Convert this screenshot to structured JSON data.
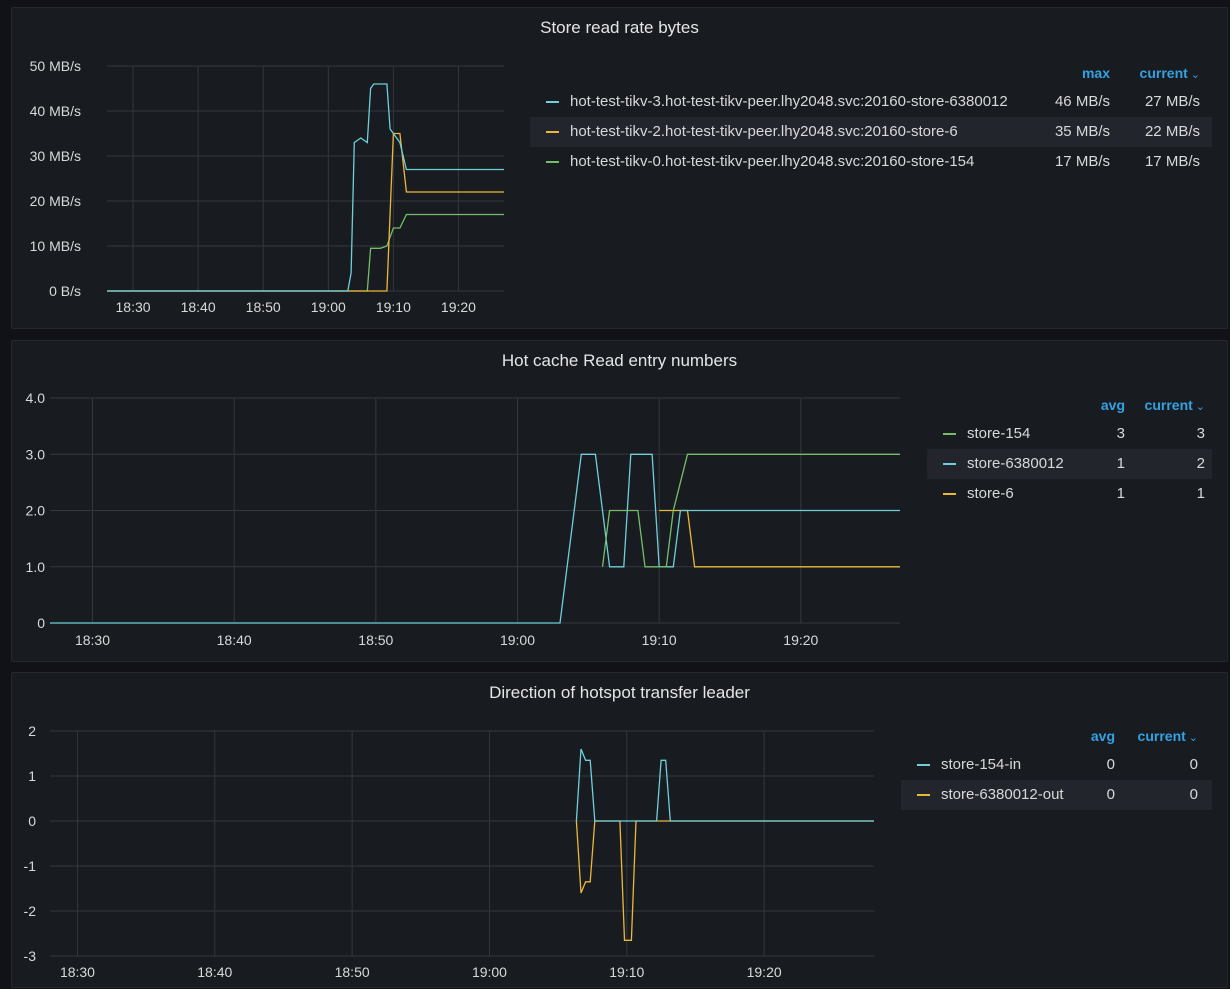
{
  "colors": {
    "green": "#73bf69",
    "cyan": "#6fcfdb",
    "yellow": "#eab839",
    "accent": "#33a2e5",
    "grid": "#34373d"
  },
  "panels": [
    {
      "title": "Store read rate bytes",
      "legend": {
        "columns": [
          "max",
          "current"
        ],
        "current_chevron": "⌄",
        "rows": [
          {
            "name": "hot-test-tikv-3.hot-test-tikv-peer.lhy2048.svc:20160-store-6380012",
            "color": "#6fcfdb",
            "values": [
              "46 MB/s",
              "27 MB/s"
            ]
          },
          {
            "name": "hot-test-tikv-2.hot-test-tikv-peer.lhy2048.svc:20160-store-6",
            "color": "#eab839",
            "values": [
              "35 MB/s",
              "22 MB/s"
            ]
          },
          {
            "name": "hot-test-tikv-0.hot-test-tikv-peer.lhy2048.svc:20160-store-154",
            "color": "#73bf69",
            "values": [
              "17 MB/s",
              "17 MB/s"
            ]
          }
        ]
      }
    },
    {
      "title": "Hot cache Read entry numbers",
      "legend": {
        "columns": [
          "avg",
          "current"
        ],
        "current_chevron": "⌄",
        "rows": [
          {
            "name": "store-154",
            "color": "#73bf69",
            "values": [
              "3",
              "3"
            ]
          },
          {
            "name": "store-6380012",
            "color": "#6fcfdb",
            "values": [
              "1",
              "2"
            ]
          },
          {
            "name": "store-6",
            "color": "#eab839",
            "values": [
              "1",
              "1"
            ]
          }
        ]
      }
    },
    {
      "title": "Direction of hotspot transfer leader",
      "legend": {
        "columns": [
          "avg",
          "current"
        ],
        "current_chevron": "⌄",
        "rows": [
          {
            "name": "store-154-in",
            "color": "#6fcfdb",
            "values": [
              "0",
              "0"
            ]
          },
          {
            "name": "store-6380012-out",
            "color": "#eab839",
            "values": [
              "0",
              "0"
            ]
          }
        ]
      }
    }
  ],
  "chart_data": [
    {
      "type": "line",
      "title": "Store read rate bytes",
      "x_unit": "minutes",
      "xlim": [
        "18:26",
        "19:27"
      ],
      "x_ticks": [
        "18:30",
        "18:40",
        "18:50",
        "19:00",
        "19:10",
        "19:20"
      ],
      "ylim": [
        0,
        50
      ],
      "y_ticks": [
        0,
        10,
        20,
        30,
        40,
        50
      ],
      "y_tick_labels": [
        "0 B/s",
        "10 MB/s",
        "20 MB/s",
        "30 MB/s",
        "40 MB/s",
        "50 MB/s"
      ],
      "grid": true,
      "legend_position": "right",
      "series": [
        {
          "name": "hot-test-tikv-3.hot-test-tikv-peer.lhy2048.svc:20160-store-6380012",
          "color": "#6fcfdb",
          "points": [
            [
              "18:26",
              0
            ],
            [
              "19:03",
              0
            ],
            [
              "19:03:30",
              4
            ],
            [
              "19:04",
              33
            ],
            [
              "19:05",
              34
            ],
            [
              "19:06",
              33
            ],
            [
              "19:06:30",
              45
            ],
            [
              "19:07",
              46
            ],
            [
              "19:08",
              46
            ],
            [
              "19:09",
              46
            ],
            [
              "19:09:30",
              36
            ],
            [
              "19:10",
              35
            ],
            [
              "19:11",
              33
            ],
            [
              "19:12",
              27
            ],
            [
              "19:14",
              27
            ],
            [
              "19:16",
              27
            ],
            [
              "19:18",
              27
            ],
            [
              "19:20",
              27
            ],
            [
              "19:22",
              27
            ],
            [
              "19:25",
              27
            ],
            [
              "19:27",
              27
            ]
          ]
        },
        {
          "name": "hot-test-tikv-2.hot-test-tikv-peer.lhy2048.svc:20160-store-6",
          "color": "#eab839",
          "points": [
            [
              "18:26",
              0
            ],
            [
              "19:09",
              0
            ],
            [
              "19:10",
              35
            ],
            [
              "19:11",
              35
            ],
            [
              "19:12",
              22
            ],
            [
              "19:14",
              22
            ],
            [
              "19:16",
              22
            ],
            [
              "19:18",
              22
            ],
            [
              "19:20",
              22
            ],
            [
              "19:22",
              22
            ],
            [
              "19:25",
              22
            ],
            [
              "19:27",
              22
            ]
          ]
        },
        {
          "name": "hot-test-tikv-0.hot-test-tikv-peer.lhy2048.svc:20160-store-154",
          "color": "#73bf69",
          "points": [
            [
              "18:26",
              0
            ],
            [
              "19:06",
              0
            ],
            [
              "19:06:30",
              9.5
            ],
            [
              "19:08",
              9.5
            ],
            [
              "19:09",
              10
            ],
            [
              "19:10",
              14
            ],
            [
              "19:11",
              14
            ],
            [
              "19:12",
              17
            ],
            [
              "19:14",
              17
            ],
            [
              "19:16",
              17
            ],
            [
              "19:18",
              17
            ],
            [
              "19:20",
              17
            ],
            [
              "19:22",
              17
            ],
            [
              "19:25",
              17
            ],
            [
              "19:27",
              17
            ]
          ]
        }
      ]
    },
    {
      "type": "line",
      "title": "Hot cache Read entry numbers",
      "x_unit": "minutes",
      "xlim": [
        "18:27",
        "19:27"
      ],
      "x_ticks": [
        "18:30",
        "18:40",
        "18:50",
        "19:00",
        "19:10",
        "19:20"
      ],
      "ylim": [
        0,
        4
      ],
      "y_ticks": [
        0,
        1,
        2,
        3,
        4
      ],
      "y_tick_labels": [
        "0",
        "1.0",
        "2.0",
        "3.0",
        "4.0"
      ],
      "grid": true,
      "legend_position": "right",
      "series": [
        {
          "name": "store-154",
          "color": "#73bf69",
          "points": [
            [
              "19:06",
              1
            ],
            [
              "19:06:30",
              2
            ],
            [
              "19:08:30",
              2
            ],
            [
              "19:09",
              1
            ],
            [
              "19:10:30",
              1
            ],
            [
              "19:11",
              2
            ],
            [
              "19:12",
              3
            ],
            [
              "19:27",
              3
            ]
          ]
        },
        {
          "name": "store-6380012",
          "color": "#6fcfdb",
          "points": [
            [
              "18:27",
              0
            ],
            [
              "19:03",
              0
            ],
            [
              "19:04:30",
              3
            ],
            [
              "19:05:30",
              3
            ],
            [
              "19:06:30",
              1
            ],
            [
              "19:07:30",
              1
            ],
            [
              "19:08",
              3
            ],
            [
              "19:09:30",
              3
            ],
            [
              "19:10",
              1
            ],
            [
              "19:11",
              1
            ],
            [
              "19:11:30",
              2
            ],
            [
              "19:27",
              2
            ]
          ]
        },
        {
          "name": "store-6",
          "color": "#eab839",
          "points": [
            [
              "19:10",
              2
            ],
            [
              "19:12",
              2
            ],
            [
              "19:12:30",
              1
            ],
            [
              "19:27",
              1
            ]
          ]
        }
      ]
    },
    {
      "type": "line",
      "title": "Direction of hotspot transfer leader",
      "x_unit": "minutes",
      "xlim": [
        "18:28",
        "19:28"
      ],
      "x_ticks": [
        "18:30",
        "18:40",
        "18:50",
        "19:00",
        "19:10",
        "19:20"
      ],
      "ylim": [
        -3,
        2
      ],
      "y_ticks": [
        -3,
        -2,
        -1,
        0,
        1,
        2
      ],
      "y_tick_labels": [
        "-3",
        "-2",
        "-1",
        "0",
        "1",
        "2"
      ],
      "grid": true,
      "legend_position": "right",
      "series": [
        {
          "name": "store-154-in",
          "color": "#6fcfdb",
          "points": [
            [
              "19:06:20",
              0
            ],
            [
              "19:06:40",
              1.6
            ],
            [
              "19:07",
              1.35
            ],
            [
              "19:07:20",
              1.35
            ],
            [
              "19:07:40",
              0
            ],
            [
              "19:09:30",
              0
            ],
            [
              "19:10",
              0
            ],
            [
              "19:12:10",
              0
            ],
            [
              "19:12:30",
              1.35
            ],
            [
              "19:12:50",
              1.35
            ],
            [
              "19:13:10",
              0
            ],
            [
              "19:28",
              0
            ]
          ]
        },
        {
          "name": "store-6380012-out",
          "color": "#eab839",
          "points": [
            [
              "19:06:20",
              0
            ],
            [
              "19:06:40",
              -1.6
            ],
            [
              "19:07",
              -1.35
            ],
            [
              "19:07:20",
              -1.35
            ],
            [
              "19:07:40",
              0
            ],
            [
              "19:09:30",
              0
            ],
            [
              "19:09:50",
              -2.65
            ],
            [
              "19:10:20",
              -2.65
            ],
            [
              "19:10:40",
              0
            ],
            [
              "19:28",
              0
            ]
          ]
        }
      ]
    }
  ]
}
